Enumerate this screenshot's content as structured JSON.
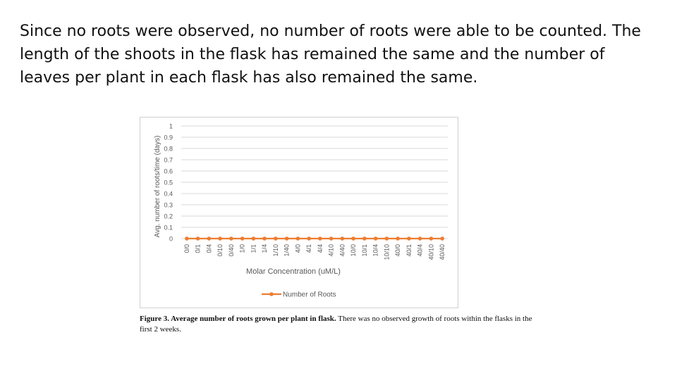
{
  "body_text": "Since no roots were observed, no number of roots were able to be counted. The length of the shoots in the flask has remained the same and the number of leaves per plant in each flask has also remained the same.",
  "caption": {
    "bold": "Figure 3. Average number of roots grown per plant in flask.",
    "rest": " There was no observed growth of roots within the flasks in the first 2 weeks."
  },
  "colors": {
    "series": "#ed7d31",
    "grid": "#d9d9d9",
    "axis_text": "#595959"
  },
  "chart_data": {
    "type": "line",
    "xlabel": "Molar Concentration (uM/L)",
    "ylabel": "Avg. number of roots/time (days)",
    "ylim": [
      0,
      1
    ],
    "yticks": [
      "0",
      "0.1",
      "0.2",
      "0.3",
      "0.4",
      "0.5",
      "0.6",
      "0.7",
      "0.8",
      "0.9",
      "1"
    ],
    "grid": true,
    "legend_position": "bottom",
    "categories": [
      "0/0",
      "0/1",
      "0/4",
      "0/10",
      "0/40",
      "1/0",
      "1/1",
      "1/4",
      "1/10",
      "1/40",
      "4/0",
      "4/1",
      "4/4",
      "4/10",
      "4/40",
      "10/0",
      "10/1",
      "10/4",
      "10/10",
      "40/0",
      "40/1",
      "40/4",
      "40/10",
      "40/40"
    ],
    "series": [
      {
        "name": "Number of Roots",
        "values": [
          0,
          0,
          0,
          0,
          0,
          0,
          0,
          0,
          0,
          0,
          0,
          0,
          0,
          0,
          0,
          0,
          0,
          0,
          0,
          0,
          0,
          0,
          0,
          0
        ]
      }
    ]
  }
}
